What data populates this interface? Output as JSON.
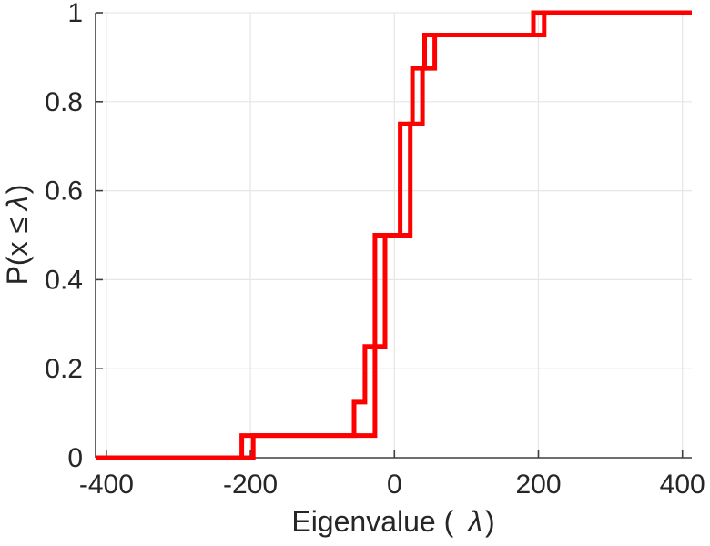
{
  "chart_data": {
    "type": "line",
    "subtype": "ecdf-stairs",
    "title": "",
    "xlabel": "Eigenvalue ( λ)",
    "ylabel": "P(x ≤ λ)",
    "xlabel_parts": {
      "prefix": "Eigenvalue (",
      "lambda": "λ",
      "suffix": ")"
    },
    "ylabel_parts": {
      "prefix": "P(x ≤",
      "lambda": "λ",
      "suffix": ")"
    },
    "xlim": [
      -415,
      413
    ],
    "ylim": [
      0,
      1
    ],
    "x_ticks": [
      {
        "value": -400,
        "label": "-400"
      },
      {
        "value": -200,
        "label": "-200"
      },
      {
        "value": 0,
        "label": "0"
      },
      {
        "value": 200,
        "label": "200"
      },
      {
        "value": 400,
        "label": "400"
      }
    ],
    "y_ticks": [
      {
        "value": 0,
        "label": "0"
      },
      {
        "value": 0.2,
        "label": "0.2"
      },
      {
        "value": 0.4,
        "label": "0.4"
      },
      {
        "value": 0.6,
        "label": "0.6"
      },
      {
        "value": 0.8,
        "label": "0.8"
      },
      {
        "value": 1,
        "label": "1"
      }
    ],
    "grid": true,
    "legend": "none",
    "line_width": 5,
    "colors": {
      "line": "#ff0000",
      "axis": "#3f3f3f",
      "grid": "#e6e6e6",
      "text": "#262626",
      "background": "#ffffff"
    },
    "series": [
      {
        "name": "ecdf-curve-1",
        "start": [
          -415,
          0
        ],
        "end_x": 413,
        "steps": [
          {
            "x": -212,
            "y": 0.05
          },
          {
            "x": -56,
            "y": 0.125
          },
          {
            "x": -41,
            "y": 0.25
          },
          {
            "x": -13,
            "y": 0.5
          },
          {
            "x": 8,
            "y": 0.75
          },
          {
            "x": 25,
            "y": 0.875
          },
          {
            "x": 42,
            "y": 0.95
          },
          {
            "x": 193,
            "y": 1
          }
        ]
      },
      {
        "name": "ecdf-curve-2",
        "start": [
          -415,
          0
        ],
        "end_x": 413,
        "steps": [
          {
            "x": -196,
            "y": 0.05
          },
          {
            "x": -27,
            "y": 0.5
          },
          {
            "x": 22,
            "y": 0.75
          },
          {
            "x": 39,
            "y": 0.875
          },
          {
            "x": 56,
            "y": 0.95
          },
          {
            "x": 208,
            "y": 1
          }
        ]
      }
    ]
  }
}
